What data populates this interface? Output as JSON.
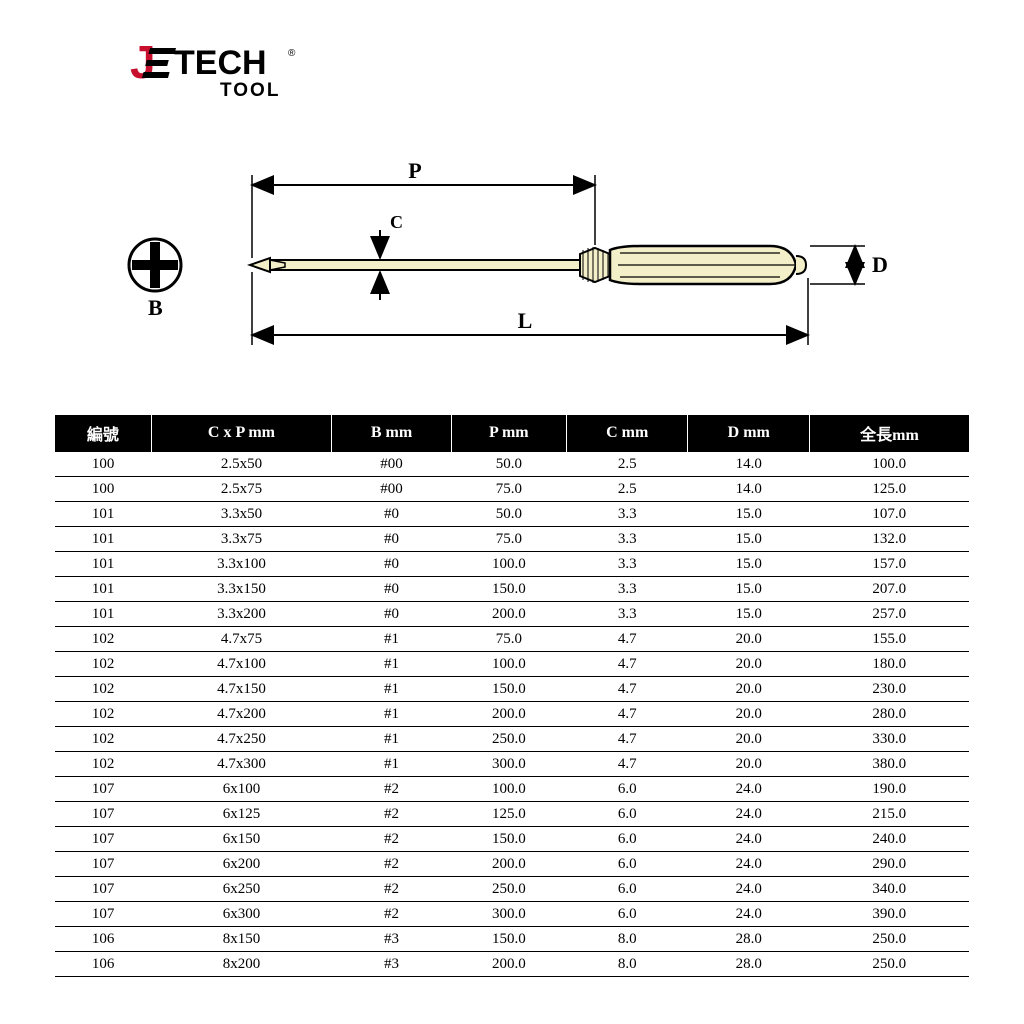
{
  "logo": {
    "brand_j": "J",
    "brand_rest": "TECH",
    "reg": "®",
    "subtitle": "TOOL",
    "color_red": "#c8102e",
    "color_black": "#000000"
  },
  "diagram": {
    "labels": {
      "B": "B",
      "P": "P",
      "C": "C",
      "L": "L",
      "D": "D"
    },
    "fill_color": "#f3efc9",
    "stroke_color": "#000000"
  },
  "table": {
    "header_bg": "#000000",
    "header_fg": "#ffffff",
    "row_border": "#000000",
    "columns": [
      "編號",
      "C x P mm",
      "B mm",
      "P mm",
      "C mm",
      "D mm",
      "全長mm"
    ],
    "rows": [
      [
        "100",
        "2.5x50",
        "#00",
        "50.0",
        "2.5",
        "14.0",
        "100.0"
      ],
      [
        "100",
        "2.5x75",
        "#00",
        "75.0",
        "2.5",
        "14.0",
        "125.0"
      ],
      [
        "101",
        "3.3x50",
        "#0",
        "50.0",
        "3.3",
        "15.0",
        "107.0"
      ],
      [
        "101",
        "3.3x75",
        "#0",
        "75.0",
        "3.3",
        "15.0",
        "132.0"
      ],
      [
        "101",
        "3.3x100",
        "#0",
        "100.0",
        "3.3",
        "15.0",
        "157.0"
      ],
      [
        "101",
        "3.3x150",
        "#0",
        "150.0",
        "3.3",
        "15.0",
        "207.0"
      ],
      [
        "101",
        "3.3x200",
        "#0",
        "200.0",
        "3.3",
        "15.0",
        "257.0"
      ],
      [
        "102",
        "4.7x75",
        "#1",
        "75.0",
        "4.7",
        "20.0",
        "155.0"
      ],
      [
        "102",
        "4.7x100",
        "#1",
        "100.0",
        "4.7",
        "20.0",
        "180.0"
      ],
      [
        "102",
        "4.7x150",
        "#1",
        "150.0",
        "4.7",
        "20.0",
        "230.0"
      ],
      [
        "102",
        "4.7x200",
        "#1",
        "200.0",
        "4.7",
        "20.0",
        "280.0"
      ],
      [
        "102",
        "4.7x250",
        "#1",
        "250.0",
        "4.7",
        "20.0",
        "330.0"
      ],
      [
        "102",
        "4.7x300",
        "#1",
        "300.0",
        "4.7",
        "20.0",
        "380.0"
      ],
      [
        "107",
        "6x100",
        "#2",
        "100.0",
        "6.0",
        "24.0",
        "190.0"
      ],
      [
        "107",
        "6x125",
        "#2",
        "125.0",
        "6.0",
        "24.0",
        "215.0"
      ],
      [
        "107",
        "6x150",
        "#2",
        "150.0",
        "6.0",
        "24.0",
        "240.0"
      ],
      [
        "107",
        "6x200",
        "#2",
        "200.0",
        "6.0",
        "24.0",
        "290.0"
      ],
      [
        "107",
        "6x250",
        "#2",
        "250.0",
        "6.0",
        "24.0",
        "340.0"
      ],
      [
        "107",
        "6x300",
        "#2",
        "300.0",
        "6.0",
        "24.0",
        "390.0"
      ],
      [
        "106",
        "8x150",
        "#3",
        "150.0",
        "8.0",
        "28.0",
        "250.0"
      ],
      [
        "106",
        "8x200",
        "#3",
        "200.0",
        "8.0",
        "28.0",
        "250.0"
      ]
    ]
  }
}
